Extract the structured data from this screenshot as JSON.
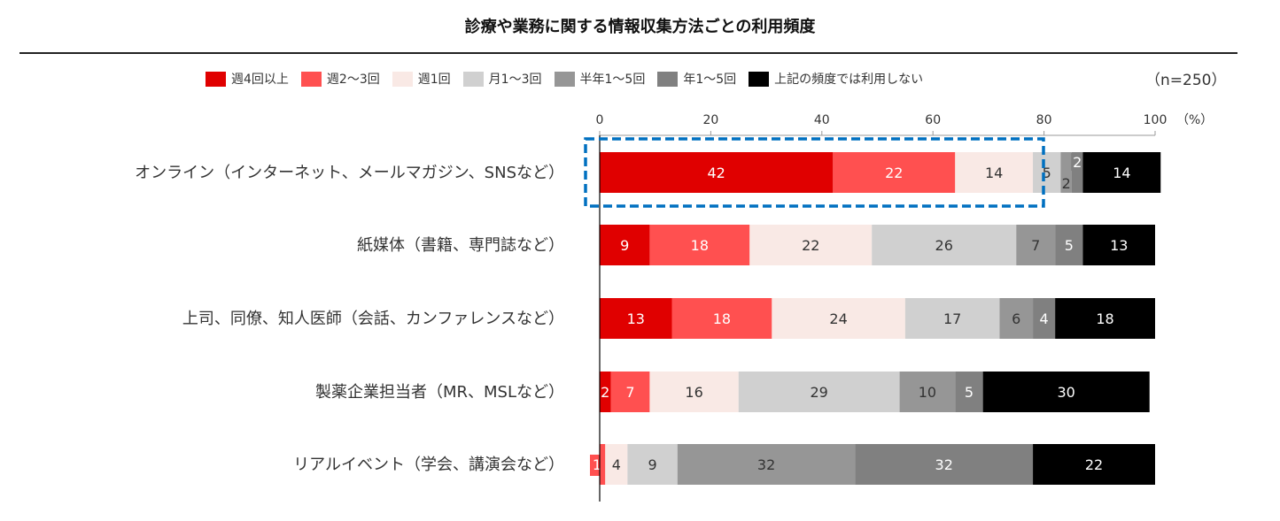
{
  "chart_data": {
    "type": "bar",
    "orientation": "horizontal-stacked-100",
    "title": "診療や業務に関する情報収集方法ごとの利用頻度",
    "note": "（n=250）",
    "xunit": "（%）",
    "xlim": [
      0,
      100
    ],
    "xticks": [
      "0",
      "20",
      "40",
      "60",
      "80",
      "100"
    ],
    "categories": [
      "オンライン（インターネット、メールマガジン、SNSなど）",
      "紙媒体（書籍、専門誌など）",
      "上司、同僚、知人医師（会話、カンファレンスなど）",
      "製薬企業担当者（MR、MSLなど）",
      "リアルイベント（学会、講演会など）"
    ],
    "series": [
      {
        "name": "週4回以上",
        "color": "#e00000",
        "values": [
          42,
          9,
          13,
          2,
          0
        ]
      },
      {
        "name": "週2〜3回",
        "color": "#ff5050",
        "values": [
          22,
          18,
          18,
          7,
          1
        ]
      },
      {
        "name": "週1回",
        "color": "#f9e9e5",
        "values": [
          14,
          22,
          24,
          16,
          4
        ]
      },
      {
        "name": "月1〜3回",
        "color": "#d0d0d0",
        "values": [
          5,
          26,
          17,
          29,
          9
        ]
      },
      {
        "name": "半年1〜5回",
        "color": "#969696",
        "values": [
          2,
          7,
          6,
          10,
          32
        ]
      },
      {
        "name": "年1〜5回",
        "color": "#808080",
        "values": [
          2,
          5,
          4,
          5,
          32
        ]
      },
      {
        "name": "上記の頻度では利用しない",
        "color": "#000000",
        "values": [
          14,
          13,
          18,
          30,
          22
        ]
      }
    ],
    "label_colors": [
      "#ffffff",
      "#ffffff",
      "#333333",
      "#333333",
      "#333333",
      "#ffffff",
      "#ffffff"
    ],
    "highlight_color": "#0070c0",
    "grid": false,
    "legend": "top"
  }
}
